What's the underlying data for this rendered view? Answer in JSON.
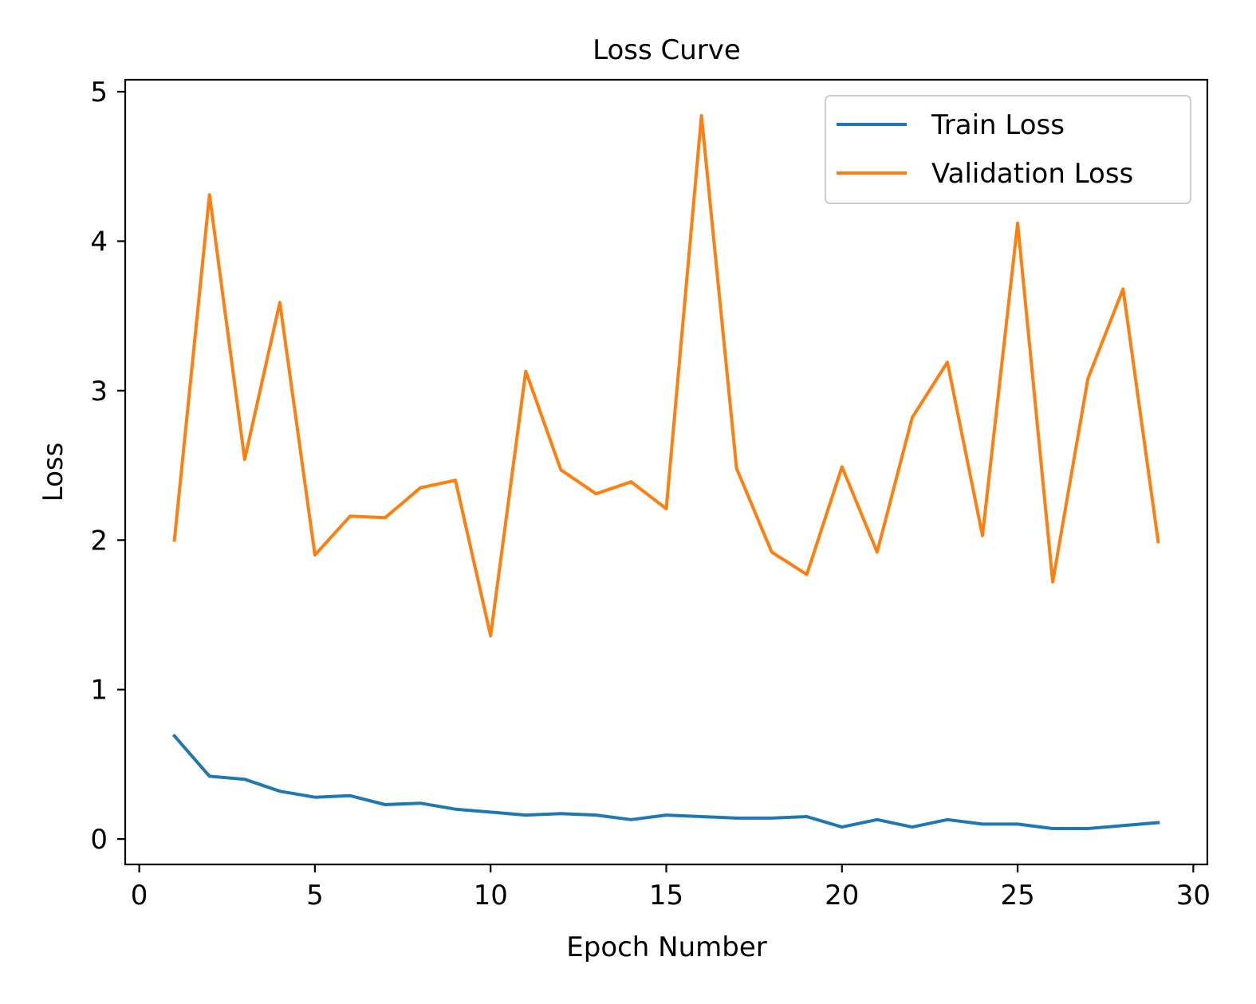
{
  "chart_data": {
    "type": "line",
    "title": "Loss Curve",
    "xlabel": "Epoch Number",
    "ylabel": "Loss",
    "xlim": [
      -0.4,
      30.4
    ],
    "ylim": [
      -0.17,
      5.08
    ],
    "xticks": [
      0,
      5,
      10,
      15,
      20,
      25,
      30
    ],
    "yticks": [
      0,
      1,
      2,
      3,
      4,
      5
    ],
    "grid": false,
    "legend_position": "top-right",
    "x": [
      1,
      2,
      3,
      4,
      5,
      6,
      7,
      8,
      9,
      10,
      11,
      12,
      13,
      14,
      15,
      16,
      17,
      18,
      19,
      20,
      21,
      22,
      23,
      24,
      25,
      26,
      27,
      28,
      29
    ],
    "series": [
      {
        "name": "Train Loss",
        "color": "#1f77b4",
        "values": [
          0.69,
          0.42,
          0.4,
          0.32,
          0.28,
          0.29,
          0.23,
          0.24,
          0.2,
          0.18,
          0.16,
          0.17,
          0.16,
          0.13,
          0.16,
          0.15,
          0.14,
          0.14,
          0.15,
          0.08,
          0.13,
          0.08,
          0.13,
          0.1,
          0.1,
          0.07,
          0.07,
          0.09,
          0.11
        ]
      },
      {
        "name": "Validation Loss",
        "color": "#ff7f0e",
        "values": [
          2.0,
          4.31,
          2.54,
          3.59,
          1.9,
          2.16,
          2.15,
          2.35,
          2.4,
          1.36,
          3.13,
          2.47,
          2.31,
          2.39,
          2.21,
          4.84,
          2.48,
          1.92,
          1.77,
          2.49,
          1.92,
          2.82,
          3.19,
          2.03,
          4.12,
          1.72,
          3.08,
          3.68,
          1.99
        ]
      }
    ]
  }
}
